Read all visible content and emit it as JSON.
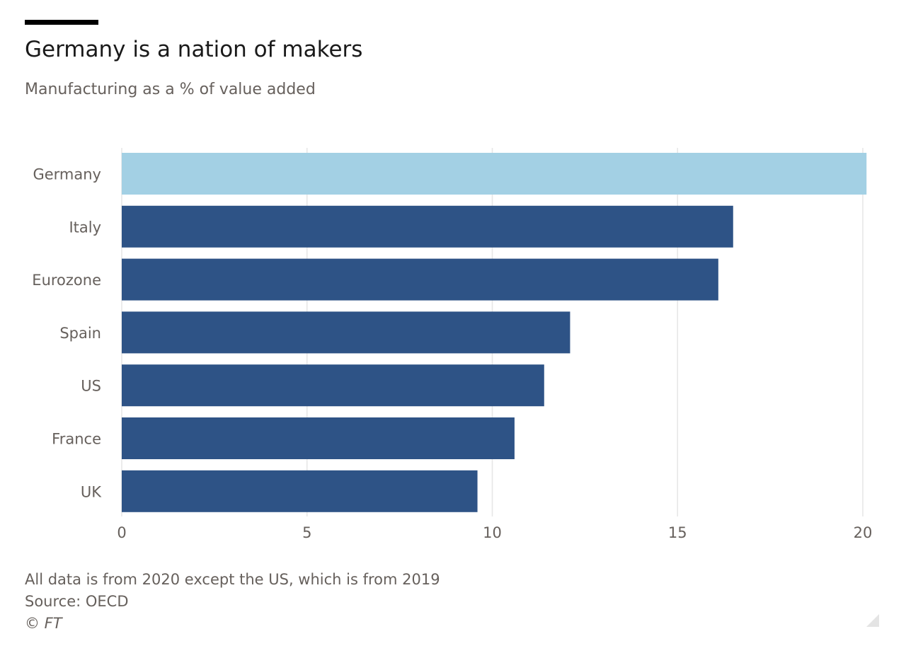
{
  "header": {
    "title": "Germany is a nation of makers",
    "subtitle": "Manufacturing as a % of value added"
  },
  "footer": {
    "note": "All data is from 2020 except the US, which is from 2019",
    "source": "Source: OECD",
    "copyright": "© FT"
  },
  "colors": {
    "highlight": "#a3d0e4",
    "bar": "#2e5386",
    "grid": "#e6e6e6",
    "axis_text": "#66605c"
  },
  "chart_data": {
    "type": "bar",
    "orientation": "horizontal",
    "title": "Germany is a nation of makers",
    "subtitle": "Manufacturing as a % of value added",
    "categories": [
      "Germany",
      "Italy",
      "Eurozone",
      "Spain",
      "US",
      "France",
      "UK"
    ],
    "values": [
      20.1,
      16.5,
      16.1,
      12.1,
      11.4,
      10.6,
      9.6
    ],
    "highlight_category": "Germany",
    "xlim": [
      0,
      20
    ],
    "xticks": [
      0,
      5,
      10,
      15,
      20
    ],
    "grid": true,
    "legend": "none"
  }
}
